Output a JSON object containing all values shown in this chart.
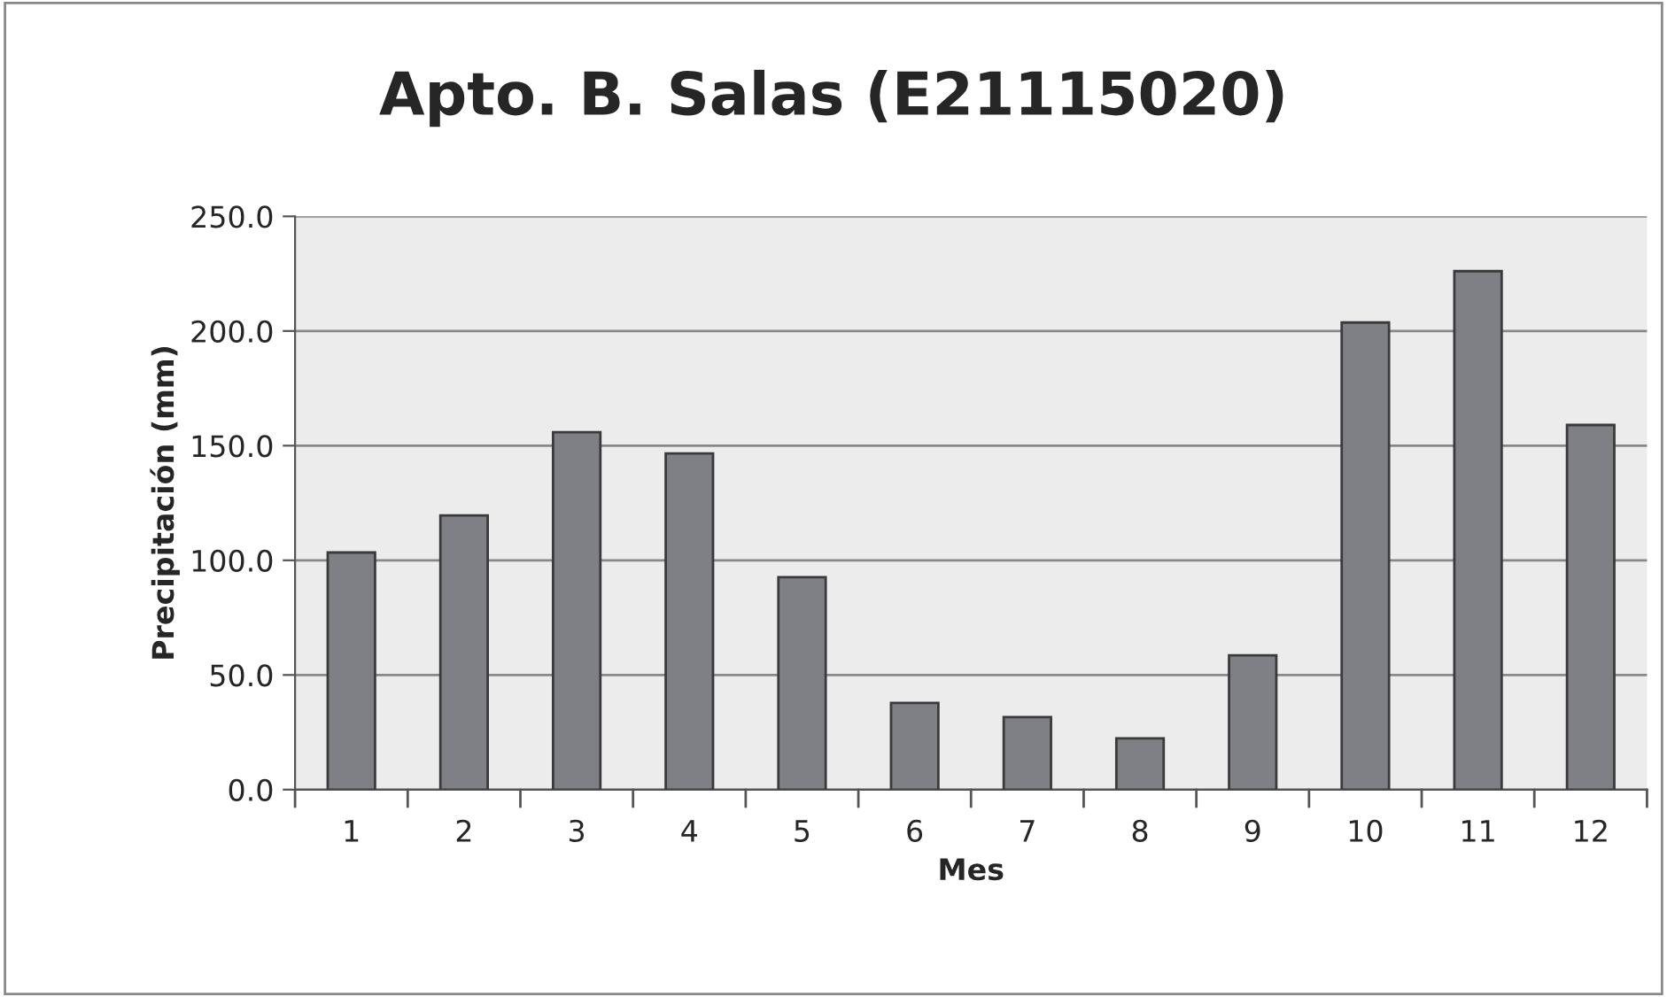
{
  "chart_data": {
    "type": "bar",
    "title": "Apto. B. Salas (E21115020)",
    "xlabel": "Mes",
    "ylabel": "Precipitación (mm)",
    "categories": [
      "1",
      "2",
      "3",
      "4",
      "5",
      "6",
      "7",
      "8",
      "9",
      "10",
      "11",
      "12"
    ],
    "values": [
      103.4,
      119.6,
      155.9,
      146.6,
      92.6,
      37.8,
      31.6,
      22.4,
      58.6,
      203.7,
      226.1,
      159.0
    ],
    "color": "#7f7f86",
    "ylim": [
      0,
      250
    ],
    "yticks": [
      {
        "value": 0,
        "label": "0.0"
      },
      {
        "value": 50,
        "label": "50.0"
      },
      {
        "value": 100,
        "label": "100.0"
      },
      {
        "value": 150,
        "label": "150.0"
      },
      {
        "value": 200,
        "label": "200.0"
      },
      {
        "value": 250,
        "label": "250.0"
      }
    ],
    "grid": "y"
  }
}
